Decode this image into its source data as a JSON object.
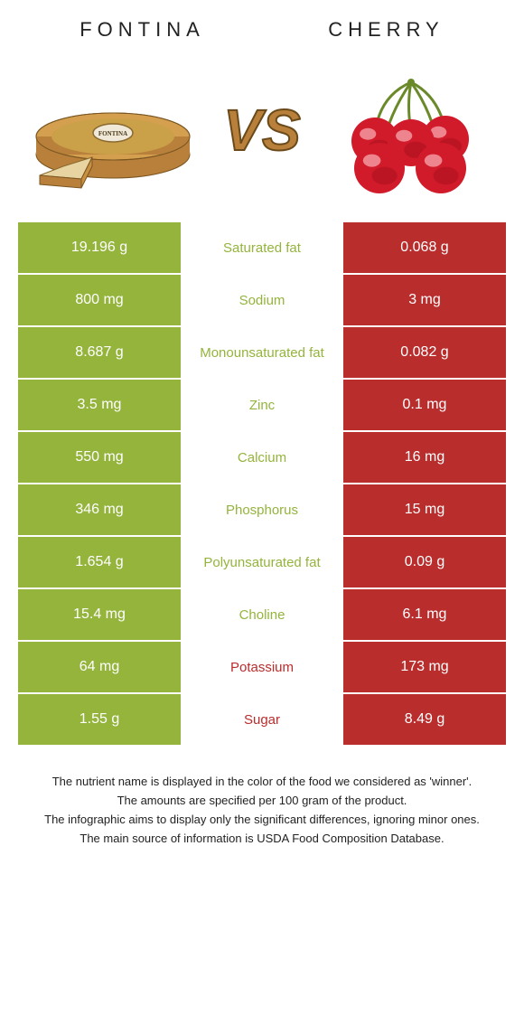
{
  "colors": {
    "left_bg": "#94b43c",
    "right_bg": "#b92d2d",
    "left_label": "#94b43c",
    "right_label": "#b92d2d",
    "cheese_rind": "#b8803a",
    "cheese_inner": "#e8d4a0",
    "cherry_red": "#d11a2a",
    "cherry_shadow": "#9c0f1c",
    "cherry_highlight": "#f5a0a8",
    "cherry_stem": "#6a8a2a",
    "vs_fill": "#b8803a",
    "vs_stroke": "#6a4a1a"
  },
  "header": {
    "left_title": "Fontina",
    "right_title": "Cherry"
  },
  "vs": {
    "text": "VS"
  },
  "rows": [
    {
      "left": "19.196 g",
      "label": "Saturated fat",
      "right": "0.068 g",
      "winner": "left"
    },
    {
      "left": "800 mg",
      "label": "Sodium",
      "right": "3 mg",
      "winner": "left"
    },
    {
      "left": "8.687 g",
      "label": "Monounsaturated fat",
      "right": "0.082 g",
      "winner": "left"
    },
    {
      "left": "3.5 mg",
      "label": "Zinc",
      "right": "0.1 mg",
      "winner": "left"
    },
    {
      "left": "550 mg",
      "label": "Calcium",
      "right": "16 mg",
      "winner": "left"
    },
    {
      "left": "346 mg",
      "label": "Phosphorus",
      "right": "15 mg",
      "winner": "left"
    },
    {
      "left": "1.654 g",
      "label": "Polyunsaturated fat",
      "right": "0.09 g",
      "winner": "left"
    },
    {
      "left": "15.4 mg",
      "label": "Choline",
      "right": "6.1 mg",
      "winner": "left"
    },
    {
      "left": "64 mg",
      "label": "Potassium",
      "right": "173 mg",
      "winner": "right"
    },
    {
      "left": "1.55 g",
      "label": "Sugar",
      "right": "8.49 g",
      "winner": "right"
    }
  ],
  "footer": {
    "lines": [
      "The nutrient name is displayed in the color of the food we considered as 'winner'.",
      "The amounts are specified per 100 gram of the product.",
      "The infographic aims to display only the significant differences, ignoring minor ones.",
      "The main source of information is USDA Food Composition Database."
    ]
  }
}
